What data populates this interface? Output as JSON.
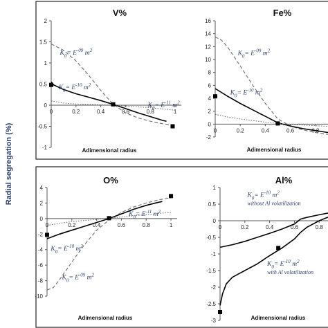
{
  "y_axis_label": "Radial segregation (%)",
  "chart_data": [
    {
      "type": "line",
      "title": "V%",
      "xlabel": "Adimensional radius",
      "ylim": [
        -1,
        2
      ],
      "yticks": [
        "-1",
        "-0.5",
        "0",
        "0.5",
        "1",
        "1.5",
        "2"
      ],
      "xticks": [
        "0",
        "0.2",
        "0.4",
        "0.6",
        "0.8",
        "1"
      ],
      "xtick_values": [
        0,
        0.2,
        0.4,
        0.6,
        0.8,
        1
      ],
      "xlim": [
        0,
        1.05
      ],
      "series": [
        {
          "style": "dashed",
          "x": [
            0,
            0.1,
            0.2,
            0.3,
            0.4,
            0.5,
            0.6,
            0.7,
            0.8,
            0.9,
            0.97
          ],
          "y": [
            1.45,
            1.3,
            1.05,
            0.72,
            0.35,
            0.02,
            -0.18,
            -0.3,
            -0.38,
            -0.44,
            -0.47
          ]
        },
        {
          "style": "solid",
          "x": [
            0,
            0.02,
            0.1,
            0.2,
            0.3,
            0.4,
            0.5,
            0.6,
            0.7,
            0.8,
            0.9,
            0.93
          ],
          "y": [
            0.55,
            0.48,
            0.37,
            0.27,
            0.19,
            0.11,
            0.02,
            -0.08,
            -0.18,
            -0.27,
            -0.36,
            -0.38
          ]
        },
        {
          "style": "dotted",
          "x": [
            0,
            0.1,
            0.2,
            0.3,
            0.4,
            0.5,
            0.6,
            0.7,
            0.8,
            0.9,
            1.0
          ],
          "y": [
            0.1,
            0.05,
            0.03,
            0.02,
            0.01,
            0.0,
            -0.02,
            -0.04,
            -0.06,
            -0.09,
            -0.12
          ]
        }
      ],
      "markers": {
        "x": [
          0,
          0.5,
          0.98
        ],
        "y": [
          0.48,
          0.02,
          -0.5
        ]
      },
      "annotations": [
        {
          "text": "K",
          "sub": "0",
          "rest": "= E",
          "sup": "-09",
          "unit": " m",
          "unit_sup": "2",
          "x": 0.07,
          "y": 1.2
        },
        {
          "text": "K",
          "sub": "0",
          "rest": "= E",
          "sup": "-10",
          "unit": " m",
          "unit_sup": "2",
          "x": 0.06,
          "y": 0.38
        },
        {
          "text": "K",
          "sub": "0",
          "rest": "= E",
          "sup": "-11",
          "unit": " m",
          "unit_sup": "2",
          "x": 0.78,
          "y": -0.04
        }
      ]
    },
    {
      "type": "line",
      "title": "Fe%",
      "xlabel": "Adimensional radius",
      "ylim": [
        -2,
        16
      ],
      "yticks": [
        "-2",
        "0",
        "2",
        "4",
        "6",
        "8",
        "10",
        "12",
        "14",
        "16"
      ],
      "xticks": [
        "0",
        "0.2",
        "0.4",
        "0.6",
        "0.8"
      ],
      "xtick_values": [
        0,
        0.2,
        0.4,
        0.6,
        0.8
      ],
      "xlim": [
        0,
        1.05
      ],
      "series": [
        {
          "style": "dashed",
          "x": [
            0,
            0.05,
            0.1,
            0.2,
            0.3,
            0.4,
            0.5,
            0.6,
            0.7,
            0.8,
            0.9,
            1.0
          ],
          "y": [
            13.5,
            13,
            11.9,
            9,
            6,
            3.2,
            0.8,
            -0.3,
            -0.9,
            -1.3,
            -1.6,
            -1.8
          ]
        },
        {
          "style": "solid",
          "x": [
            0,
            0.1,
            0.2,
            0.3,
            0.4,
            0.5,
            0.6,
            0.7,
            0.8,
            0.9,
            1.0
          ],
          "y": [
            5.5,
            4.3,
            3.2,
            2.2,
            1.2,
            0.2,
            -0.3,
            -0.7,
            -1.0,
            -1.3,
            -1.5
          ]
        },
        {
          "style": "dotted",
          "x": [
            0,
            0.1,
            0.2,
            0.3,
            0.4,
            0.5,
            0.6,
            0.7,
            0.8,
            0.9,
            1.0
          ],
          "y": [
            1.5,
            1.1,
            0.8,
            0.55,
            0.3,
            0.1,
            -0.05,
            -0.15,
            -0.25,
            -0.35,
            -0.45
          ]
        }
      ],
      "markers": {
        "x": [
          0,
          0.5
        ],
        "y": [
          4.3,
          0.1
        ]
      },
      "annotations": [
        {
          "text": "K",
          "sub": "0",
          "rest": "= E",
          "sup": "-09",
          "unit": " m",
          "unit_sup": "2",
          "x": 0.18,
          "y": 10.7
        },
        {
          "text": "K",
          "sub": "0",
          "rest": "= E",
          "sup": "-10",
          "unit": " m",
          "unit_sup": "2",
          "x": 0.12,
          "y": 4.6
        }
      ]
    },
    {
      "type": "line",
      "title": "O%",
      "xlabel": "Adimensional radius",
      "ylim": [
        -10,
        4
      ],
      "yticks": [
        "-10",
        "-8",
        "-6",
        "-4",
        "-2",
        "0",
        "2",
        "4"
      ],
      "xticks": [
        "0",
        "0.2",
        "0.4",
        "0.6",
        "0.8",
        "1"
      ],
      "xtick_values": [
        0,
        0.2,
        0.4,
        0.6,
        0.8,
        1
      ],
      "xlim": [
        0,
        1.05
      ],
      "series": [
        {
          "style": "dashed",
          "x": [
            0,
            0.05,
            0.1,
            0.2,
            0.3,
            0.4,
            0.5,
            0.6,
            0.7,
            0.8,
            0.9,
            1.0
          ],
          "y": [
            -9.2,
            -8.9,
            -7.9,
            -5.6,
            -3.4,
            -1.5,
            -0.2,
            0.8,
            1.5,
            2.0,
            2.4,
            2.7
          ]
        },
        {
          "style": "solid",
          "x": [
            0,
            0.1,
            0.2,
            0.3,
            0.4,
            0.5,
            0.6,
            0.7,
            0.8,
            0.9,
            0.93
          ],
          "y": [
            -2.6,
            -2.0,
            -1.5,
            -1.0,
            -0.5,
            0.0,
            0.6,
            1.2,
            1.7,
            2.1,
            2.2
          ]
        },
        {
          "style": "dotted",
          "x": [
            0,
            0.1,
            0.2,
            0.3,
            0.4,
            0.5,
            0.6,
            0.7,
            0.8,
            0.9,
            1.0
          ],
          "y": [
            -0.9,
            -0.6,
            -0.4,
            -0.25,
            -0.1,
            0.05,
            0.2,
            0.35,
            0.5,
            0.65,
            0.8
          ]
        }
      ],
      "markers": {
        "x": [
          0,
          0.5,
          1.0
        ],
        "y": [
          -2.1,
          0.05,
          2.9
        ]
      },
      "annotations": [
        {
          "text": "K",
          "sub": "0",
          "rest": "= E",
          "sup": "-11",
          "unit": " m",
          "unit_sup": "2",
          "x": 0.66,
          "y": 0.35
        },
        {
          "text": "K",
          "sub": "0",
          "rest": "= E",
          "sup": "-10",
          "unit": " m",
          "unit_sup": "2",
          "x": 0.03,
          "y": -4.1
        },
        {
          "text": "K",
          "sub": "0",
          "rest": "= E",
          "sup": "-09",
          "unit": " m",
          "unit_sup": "2",
          "x": 0.12,
          "y": -7.8
        }
      ]
    },
    {
      "type": "line",
      "title": "Al%",
      "xlabel": "Adimensional radius",
      "ylim": [
        -3,
        1
      ],
      "yticks": [
        "-3",
        "-2.5",
        "-2",
        "-1.5",
        "-1",
        "-0.5",
        "0",
        "0.5",
        "1"
      ],
      "xticks": [
        "0",
        "0.2",
        "0.4",
        "0.6",
        "0.8"
      ],
      "xtick_values": [
        0,
        0.2,
        0.4,
        0.6,
        0.8
      ],
      "xlim": [
        0,
        1.05
      ],
      "series": [
        {
          "style": "solid",
          "x": [
            0,
            0.1,
            0.2,
            0.3,
            0.4,
            0.5,
            0.6,
            0.65,
            0.7,
            0.8,
            0.9,
            1.0
          ],
          "y": [
            -0.8,
            -0.72,
            -0.62,
            -0.5,
            -0.38,
            -0.25,
            -0.1,
            0.05,
            0.1,
            0.18,
            0.25,
            0.3
          ]
        },
        {
          "style": "solid",
          "x": [
            0,
            0.02,
            0.05,
            0.1,
            0.2,
            0.3,
            0.4,
            0.5,
            0.6,
            0.65,
            0.7,
            0.8,
            0.9,
            1.0
          ],
          "y": [
            -2.55,
            -2.2,
            -1.9,
            -1.7,
            -1.5,
            -1.3,
            -1.05,
            -0.82,
            -0.55,
            -0.35,
            -0.2,
            0.0,
            0.15,
            0.25
          ]
        }
      ],
      "markers": {
        "x": [
          0.0,
          0.47
        ],
        "y": [
          -2.75,
          -0.82
        ]
      },
      "annotations": [
        {
          "text": "K",
          "sub": "0",
          "rest": "= E",
          "sup": "-10",
          "unit": " m",
          "unit_sup": "2",
          "x": 0.22,
          "y": 0.72,
          "note": "without Al volatilization"
        },
        {
          "text": "K",
          "sub": "0",
          "rest": "= E",
          "sup": "-10",
          "unit": " m",
          "unit_sup": "2",
          "x": 0.38,
          "y": -1.35,
          "note": "with Al volatilization"
        }
      ]
    }
  ]
}
